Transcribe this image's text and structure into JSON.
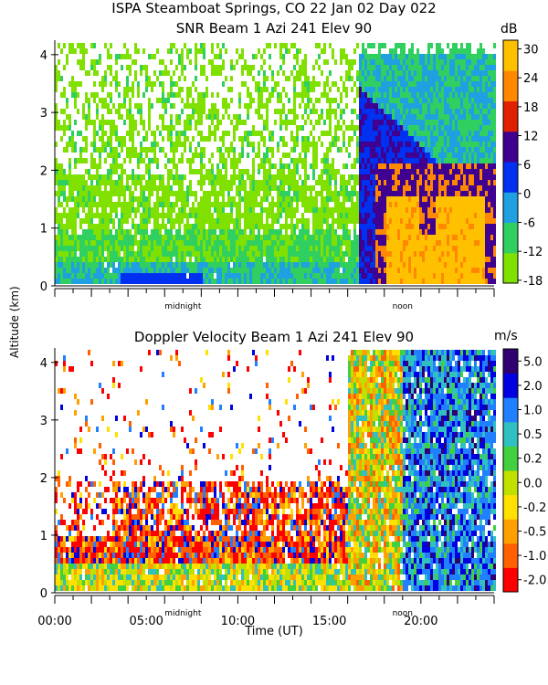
{
  "header": {
    "title_line1": "ISPA Steamboat Springs, CO   22 Jan 02 Day 022",
    "title_line2": "SNR Beam 1 Azi 241 Elev 90"
  },
  "chart_data": [
    {
      "type": "heatmap",
      "title": "SNR Beam 1 Azi 241 Elev 90",
      "ylabel": "Altitude (km)",
      "xlabel": "",
      "colorbar_unit": "dB",
      "ylim": [
        0,
        4.25
      ],
      "xlim": [
        0,
        24
      ],
      "y_ticks": [
        "0",
        "1",
        "2",
        "3",
        "4"
      ],
      "y_tick_values": [
        0,
        1,
        2,
        3,
        4
      ],
      "markers": [
        {
          "label": "midnight",
          "x": 7
        },
        {
          "label": "noon",
          "x": 19
        }
      ],
      "colorbar_ticks": [
        "-18",
        "-12",
        "-6",
        "0",
        "6",
        "12",
        "18",
        "24",
        "30"
      ],
      "colorbar_colors": [
        "#80e000",
        "#30d060",
        "#20a0e0",
        "#0030f0",
        "#400090",
        "#e02000",
        "#ff8800",
        "#ffc000"
      ]
    },
    {
      "type": "heatmap",
      "title": "Doppler Velocity Beam 1 Azi 241 Elev 90",
      "xlabel": "Time (UT)",
      "ylabel": "Altitude (km)",
      "colorbar_unit": "m/s",
      "ylim": [
        0,
        4.25
      ],
      "xlim": [
        0,
        24
      ],
      "y_ticks": [
        "0",
        "1",
        "2",
        "3",
        "4"
      ],
      "y_tick_values": [
        0,
        1,
        2,
        3,
        4
      ],
      "x_ticks": [
        "00:00",
        "05:00",
        "10:00",
        "15:00",
        "20:00"
      ],
      "x_tick_values": [
        0,
        5,
        10,
        15,
        20
      ],
      "markers": [
        {
          "label": "midnight",
          "x": 7
        },
        {
          "label": "noon",
          "x": 19
        }
      ],
      "colorbar_ticks": [
        "-2.0",
        "-1.0",
        "-0.5",
        "-0.2",
        "0.0",
        "0.2",
        "0.5",
        "1.0",
        "2.0",
        "5.0"
      ],
      "colorbar_colors": [
        "#ff0000",
        "#ff6000",
        "#ffa000",
        "#ffe000",
        "#c0e000",
        "#40d040",
        "#30c0c0",
        "#2080ff",
        "#0000e0",
        "#300070"
      ]
    }
  ],
  "axis": {
    "ylabel": "Altitude (km)",
    "xlabel": "Time (UT)"
  }
}
